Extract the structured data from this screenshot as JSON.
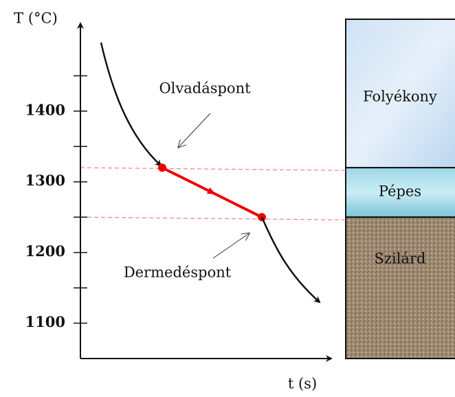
{
  "axis": {
    "y_label": "T (°C)",
    "x_label": "t (s)",
    "ylim": [
      1050,
      1530
    ],
    "yticks": [
      1100,
      1200,
      1300,
      1400
    ]
  },
  "points": {
    "melting": {
      "label": "Olvadáspont",
      "value": 1320
    },
    "solidification": {
      "label": "Dermedéspont",
      "value": 1250
    }
  },
  "zones": {
    "liquid": "Folyékony",
    "pasty": "Pépes",
    "solid": "Szilárd"
  }
}
